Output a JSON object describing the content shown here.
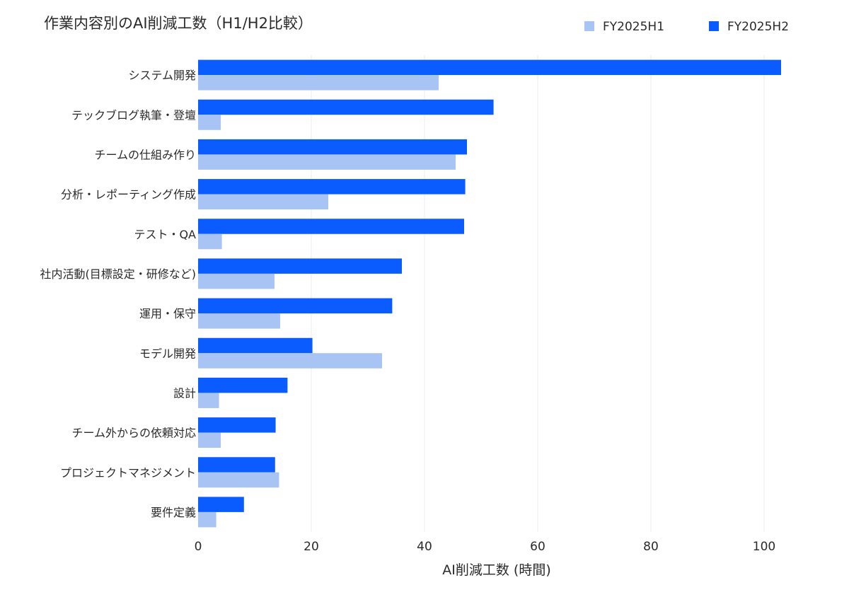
{
  "chart_data": {
    "type": "bar",
    "orientation": "horizontal",
    "title": "作業内容別のAI削減工数（H1/H2比較）",
    "xlabel": "AI削減工数 (時間)",
    "ylabel": "",
    "xlim": [
      0,
      105
    ],
    "xticks": [
      0,
      20,
      40,
      60,
      80,
      100
    ],
    "grid": true,
    "legend_position": "top-right",
    "categories": [
      "システム開発",
      "テックブログ執筆・登壇",
      "チームの仕組み作り",
      "分析・レポーティング作成",
      "テスト・QA",
      "社内活動(目標設定・研修など)",
      "運用・保守",
      "モデル開発",
      "設計",
      "チーム外からの依頼対応",
      "プロジェクトマネジメント",
      "要件定義"
    ],
    "series": [
      {
        "name": "FY2025H1",
        "color": "#a8c4f5",
        "values": [
          42.5,
          4,
          45.5,
          23,
          4.2,
          13.5,
          14.5,
          32.5,
          3.7,
          4,
          14.3,
          3.2
        ]
      },
      {
        "name": "FY2025H2",
        "color": "#0a5cff",
        "values": [
          103,
          52.2,
          47.5,
          47.2,
          47,
          36,
          34.3,
          20.2,
          15.8,
          13.7,
          13.6,
          8.1
        ]
      }
    ]
  }
}
